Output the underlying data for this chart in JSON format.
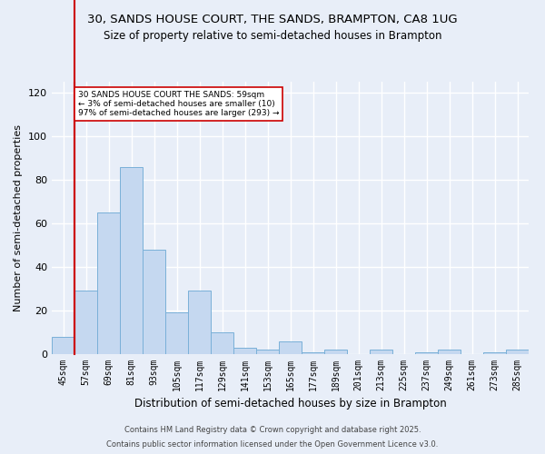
{
  "title_line1": "30, SANDS HOUSE COURT, THE SANDS, BRAMPTON, CA8 1UG",
  "title_line2": "Size of property relative to semi-detached houses in Brampton",
  "xlabel": "Distribution of semi-detached houses by size in Brampton",
  "ylabel": "Number of semi-detached properties",
  "categories": [
    "45sqm",
    "57sqm",
    "69sqm",
    "81sqm",
    "93sqm",
    "105sqm",
    "117sqm",
    "129sqm",
    "141sqm",
    "153sqm",
    "165sqm",
    "177sqm",
    "189sqm",
    "201sqm",
    "213sqm",
    "225sqm",
    "237sqm",
    "249sqm",
    "261sqm",
    "273sqm",
    "285sqm"
  ],
  "values": [
    8,
    29,
    65,
    86,
    48,
    19,
    29,
    10,
    3,
    2,
    6,
    1,
    2,
    0,
    2,
    0,
    1,
    2,
    0,
    1,
    2
  ],
  "bar_color": "#c5d8f0",
  "bar_edge_color": "#7ab0d8",
  "vline_x_idx": 1,
  "vline_color": "#cc0000",
  "annotation_text": "30 SANDS HOUSE COURT THE SANDS: 59sqm\n← 3% of semi-detached houses are smaller (10)\n97% of semi-detached houses are larger (293) →",
  "annotation_box_color": "#ffffff",
  "annotation_box_edgecolor": "#cc0000",
  "ylim_max": 125,
  "yticks": [
    0,
    20,
    40,
    60,
    80,
    100,
    120
  ],
  "background_color": "#e8eef8",
  "grid_color": "#ffffff",
  "footer_line1": "Contains HM Land Registry data © Crown copyright and database right 2025.",
  "footer_line2": "Contains public sector information licensed under the Open Government Licence v3.0."
}
